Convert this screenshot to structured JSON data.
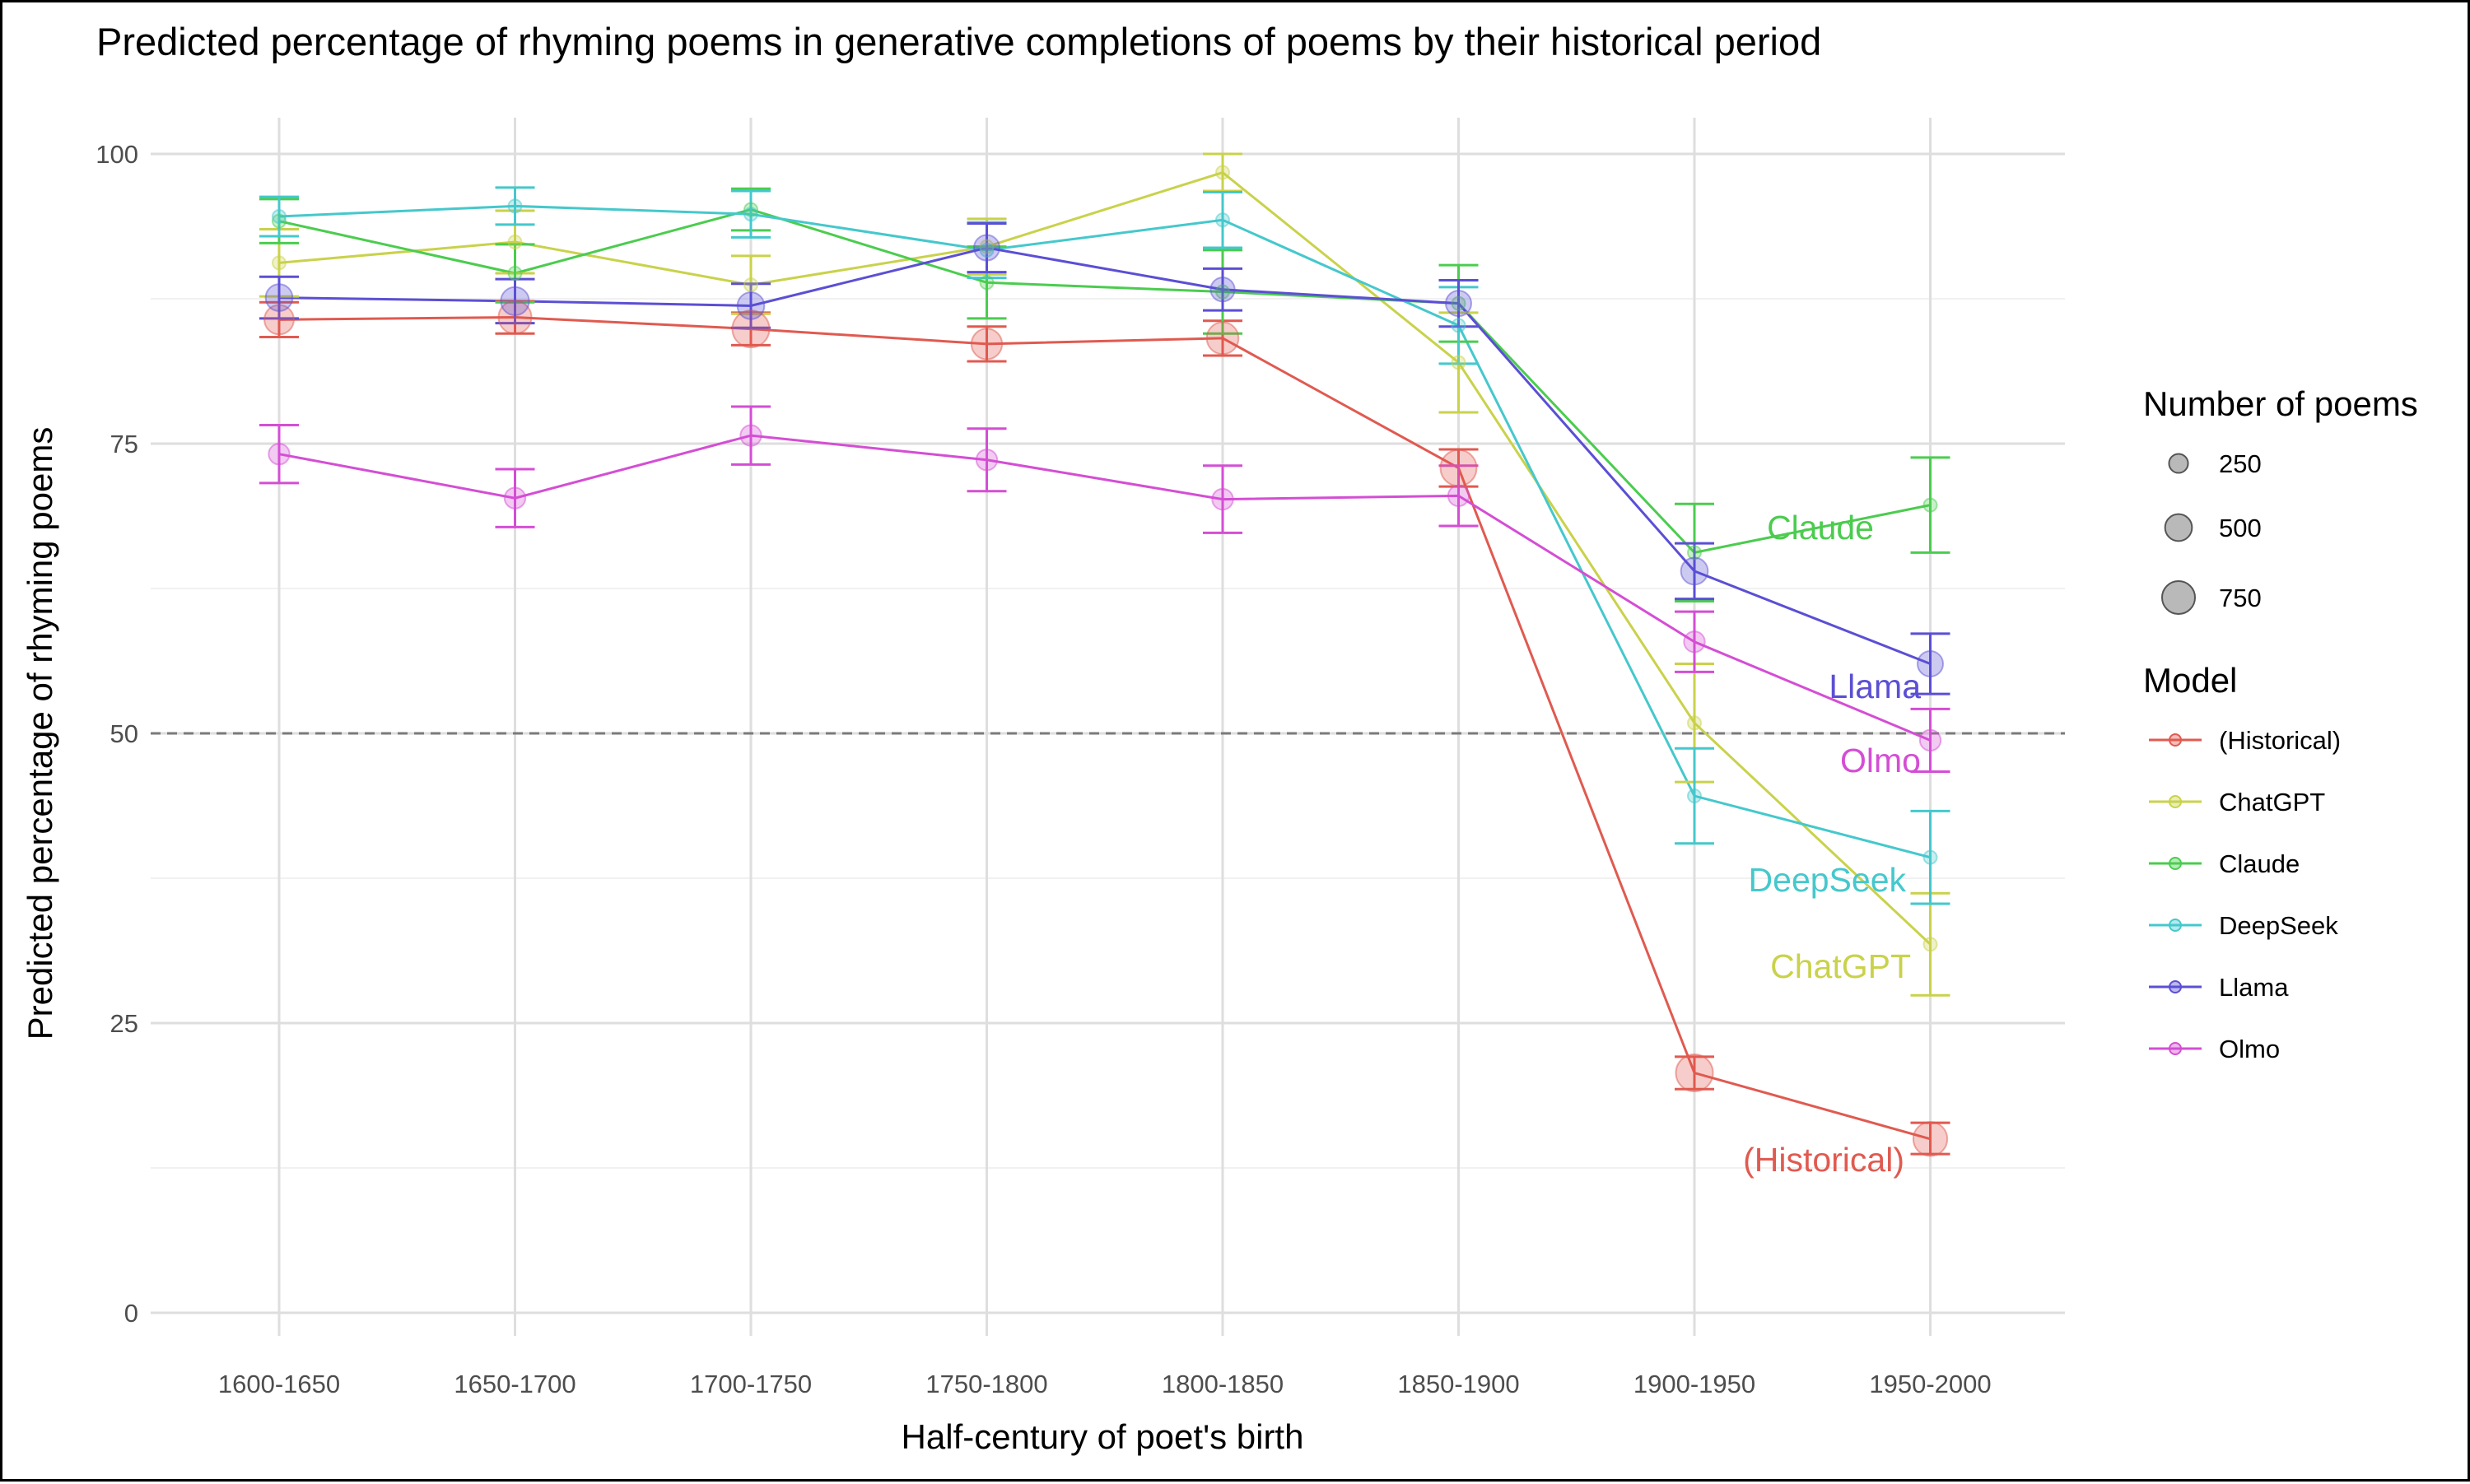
{
  "chart_data": {
    "type": "line",
    "title": "Predicted percentage of rhyming poems in generative completions of poems by their historical period",
    "xlabel": "Half-century of poet's birth",
    "ylabel": "Predicted percentage of rhyming poems",
    "categories": [
      "1600-1650",
      "1650-1700",
      "1700-1750",
      "1750-1800",
      "1800-1850",
      "1850-1900",
      "1900-1950",
      "1950-2000"
    ],
    "ylim": [
      0,
      100
    ],
    "yticks": [
      0,
      25,
      50,
      75,
      100
    ],
    "reference_line": {
      "y": 50,
      "style": "dashed"
    },
    "grid": true,
    "legend_position": "right",
    "size_legend": {
      "title": "Number of poems",
      "entries": [
        250,
        500,
        750
      ]
    },
    "color_legend_title": "Model",
    "series": [
      {
        "name": "(Historical)",
        "color": "#e05a50",
        "values": [
          85.7,
          85.9,
          84.9,
          83.6,
          84.1,
          72.9,
          20.7,
          15.0
        ],
        "lower": [
          84.2,
          84.5,
          83.5,
          82.1,
          82.6,
          71.3,
          19.3,
          13.7
        ],
        "upper": [
          87.2,
          87.3,
          86.3,
          85.1,
          85.6,
          74.5,
          22.1,
          16.4
        ],
        "n": [
          600,
          750,
          950,
          650,
          700,
          900,
          950,
          800
        ]
      },
      {
        "name": "ChatGPT",
        "color": "#c9d24a",
        "values": [
          90.6,
          92.4,
          88.7,
          92.0,
          98.4,
          82.0,
          50.9,
          31.8
        ],
        "lower": [
          87.7,
          89.7,
          86.2,
          89.6,
          96.8,
          77.7,
          45.8,
          27.4
        ],
        "upper": [
          93.5,
          95.1,
          91.2,
          94.4,
          100.0,
          86.3,
          56.0,
          36.2
        ],
        "n": [
          120,
          120,
          120,
          120,
          120,
          120,
          120,
          120
        ]
      },
      {
        "name": "Claude",
        "color": "#4bcc4f",
        "values": [
          94.2,
          89.7,
          95.2,
          88.9,
          88.1,
          87.1,
          65.6,
          69.7
        ],
        "lower": [
          92.3,
          87.2,
          93.4,
          85.8,
          84.5,
          83.8,
          61.4,
          65.6
        ],
        "upper": [
          96.1,
          92.2,
          97.0,
          92.0,
          91.7,
          90.4,
          69.8,
          73.8
        ],
        "n": [
          120,
          120,
          120,
          120,
          120,
          120,
          120,
          120
        ]
      },
      {
        "name": "DeepSeek",
        "color": "#45c8cc",
        "values": [
          94.6,
          95.5,
          94.8,
          91.7,
          94.3,
          85.2,
          44.6,
          39.3
        ],
        "lower": [
          92.9,
          93.9,
          92.8,
          89.3,
          91.9,
          81.9,
          40.5,
          35.3
        ],
        "upper": [
          96.3,
          97.1,
          96.8,
          94.1,
          96.7,
          88.5,
          48.7,
          43.3
        ],
        "n": [
          120,
          120,
          120,
          120,
          120,
          120,
          120,
          120
        ]
      },
      {
        "name": "Llama",
        "color": "#5b4fd4",
        "values": [
          87.6,
          87.3,
          86.9,
          91.9,
          88.3,
          87.1,
          64.0,
          56.0
        ],
        "lower": [
          85.8,
          85.4,
          85.0,
          89.8,
          86.5,
          85.1,
          61.6,
          53.4
        ],
        "upper": [
          89.4,
          89.2,
          88.8,
          94.0,
          90.1,
          89.1,
          66.4,
          58.6
        ],
        "n": [
          500,
          550,
          500,
          450,
          400,
          450,
          500,
          450
        ]
      },
      {
        "name": "Olmo",
        "color": "#d44ed4",
        "values": [
          74.1,
          70.3,
          75.7,
          73.6,
          70.2,
          70.5,
          57.9,
          49.4
        ],
        "lower": [
          71.6,
          67.8,
          73.2,
          70.9,
          67.3,
          67.9,
          55.3,
          46.7
        ],
        "upper": [
          76.6,
          72.8,
          78.2,
          76.3,
          73.1,
          73.1,
          60.5,
          52.1
        ],
        "n": [
          300,
          300,
          300,
          300,
          300,
          300,
          300,
          300
        ]
      }
    ],
    "annotations": [
      "Claude",
      "Llama",
      "Olmo",
      "DeepSeek",
      "ChatGPT",
      "(Historical)"
    ]
  }
}
